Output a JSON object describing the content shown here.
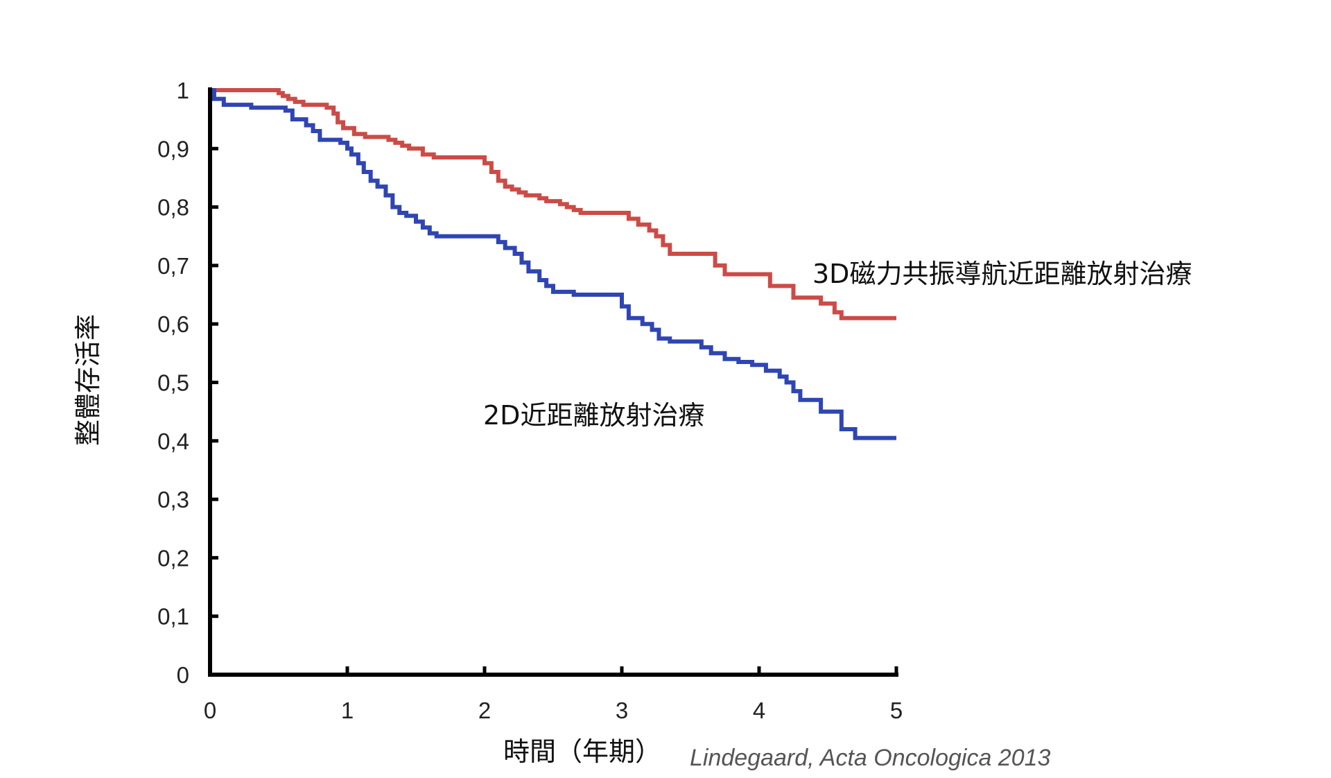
{
  "chart_data": {
    "type": "line",
    "step": true,
    "title": "",
    "xlabel": "時間（年期）",
    "ylabel": "整體存活率",
    "xlim": [
      0,
      5
    ],
    "ylim": [
      0,
      1
    ],
    "x_ticks": [
      "0",
      "1",
      "2",
      "3",
      "4",
      "5"
    ],
    "y_ticks": [
      "0",
      "0,1",
      "0,2",
      "0,3",
      "0,4",
      "0,5",
      "0,6",
      "0,7",
      "0,8",
      "0,9",
      "1"
    ],
    "grid": false,
    "legend": "inline labels next to curves",
    "source": "Lindegaard, Acta Oncologica 2013",
    "series": [
      {
        "name": "3D磁力共振導航近距離放射治療",
        "color": "#cc4b47",
        "x": [
          0,
          0.5,
          0.53,
          0.57,
          0.62,
          0.68,
          0.85,
          0.9,
          0.93,
          0.97,
          1.05,
          1.13,
          1.3,
          1.35,
          1.4,
          1.45,
          1.55,
          1.63,
          1.7,
          1.85,
          2.0,
          2.05,
          2.1,
          2.15,
          2.2,
          2.25,
          2.3,
          2.4,
          2.45,
          2.55,
          2.6,
          2.65,
          2.7,
          2.77,
          3.0,
          3.05,
          3.12,
          3.2,
          3.25,
          3.3,
          3.35,
          3.45,
          3.68,
          3.75,
          3.97,
          4.08,
          4.25,
          4.45,
          4.55,
          4.6,
          4.7,
          4.85,
          5.0
        ],
        "y": [
          1.0,
          0.995,
          0.99,
          0.985,
          0.98,
          0.975,
          0.97,
          0.96,
          0.945,
          0.935,
          0.925,
          0.92,
          0.915,
          0.91,
          0.905,
          0.9,
          0.89,
          0.885,
          0.885,
          0.885,
          0.875,
          0.86,
          0.845,
          0.835,
          0.83,
          0.825,
          0.82,
          0.815,
          0.81,
          0.805,
          0.8,
          0.795,
          0.79,
          0.79,
          0.79,
          0.78,
          0.77,
          0.76,
          0.75,
          0.735,
          0.72,
          0.72,
          0.7,
          0.685,
          0.685,
          0.665,
          0.645,
          0.635,
          0.62,
          0.61,
          0.61,
          0.61,
          0.61
        ]
      },
      {
        "name": "2D近距離放射治療",
        "color": "#2f45b3",
        "x": [
          0,
          0.03,
          0.1,
          0.3,
          0.55,
          0.6,
          0.7,
          0.75,
          0.8,
          0.8,
          0.95,
          1.0,
          1.03,
          1.08,
          1.12,
          1.17,
          1.22,
          1.28,
          1.33,
          1.38,
          1.43,
          1.5,
          1.55,
          1.6,
          1.65,
          2.0,
          2.1,
          2.15,
          2.22,
          2.27,
          2.32,
          2.4,
          2.45,
          2.5,
          2.65,
          2.9,
          3.0,
          3.05,
          3.15,
          3.22,
          3.27,
          3.35,
          3.58,
          3.65,
          3.75,
          3.85,
          3.95,
          4.05,
          4.15,
          4.2,
          4.25,
          4.3,
          4.45,
          4.6,
          4.7,
          5.0
        ],
        "y": [
          1.0,
          0.985,
          0.975,
          0.97,
          0.965,
          0.95,
          0.94,
          0.93,
          0.925,
          0.915,
          0.91,
          0.9,
          0.89,
          0.875,
          0.86,
          0.845,
          0.835,
          0.82,
          0.8,
          0.79,
          0.785,
          0.775,
          0.765,
          0.755,
          0.75,
          0.75,
          0.74,
          0.73,
          0.72,
          0.705,
          0.69,
          0.675,
          0.665,
          0.655,
          0.65,
          0.65,
          0.63,
          0.61,
          0.6,
          0.59,
          0.575,
          0.57,
          0.56,
          0.55,
          0.54,
          0.535,
          0.53,
          0.52,
          0.51,
          0.5,
          0.485,
          0.47,
          0.45,
          0.42,
          0.405,
          0.405
        ]
      }
    ]
  }
}
